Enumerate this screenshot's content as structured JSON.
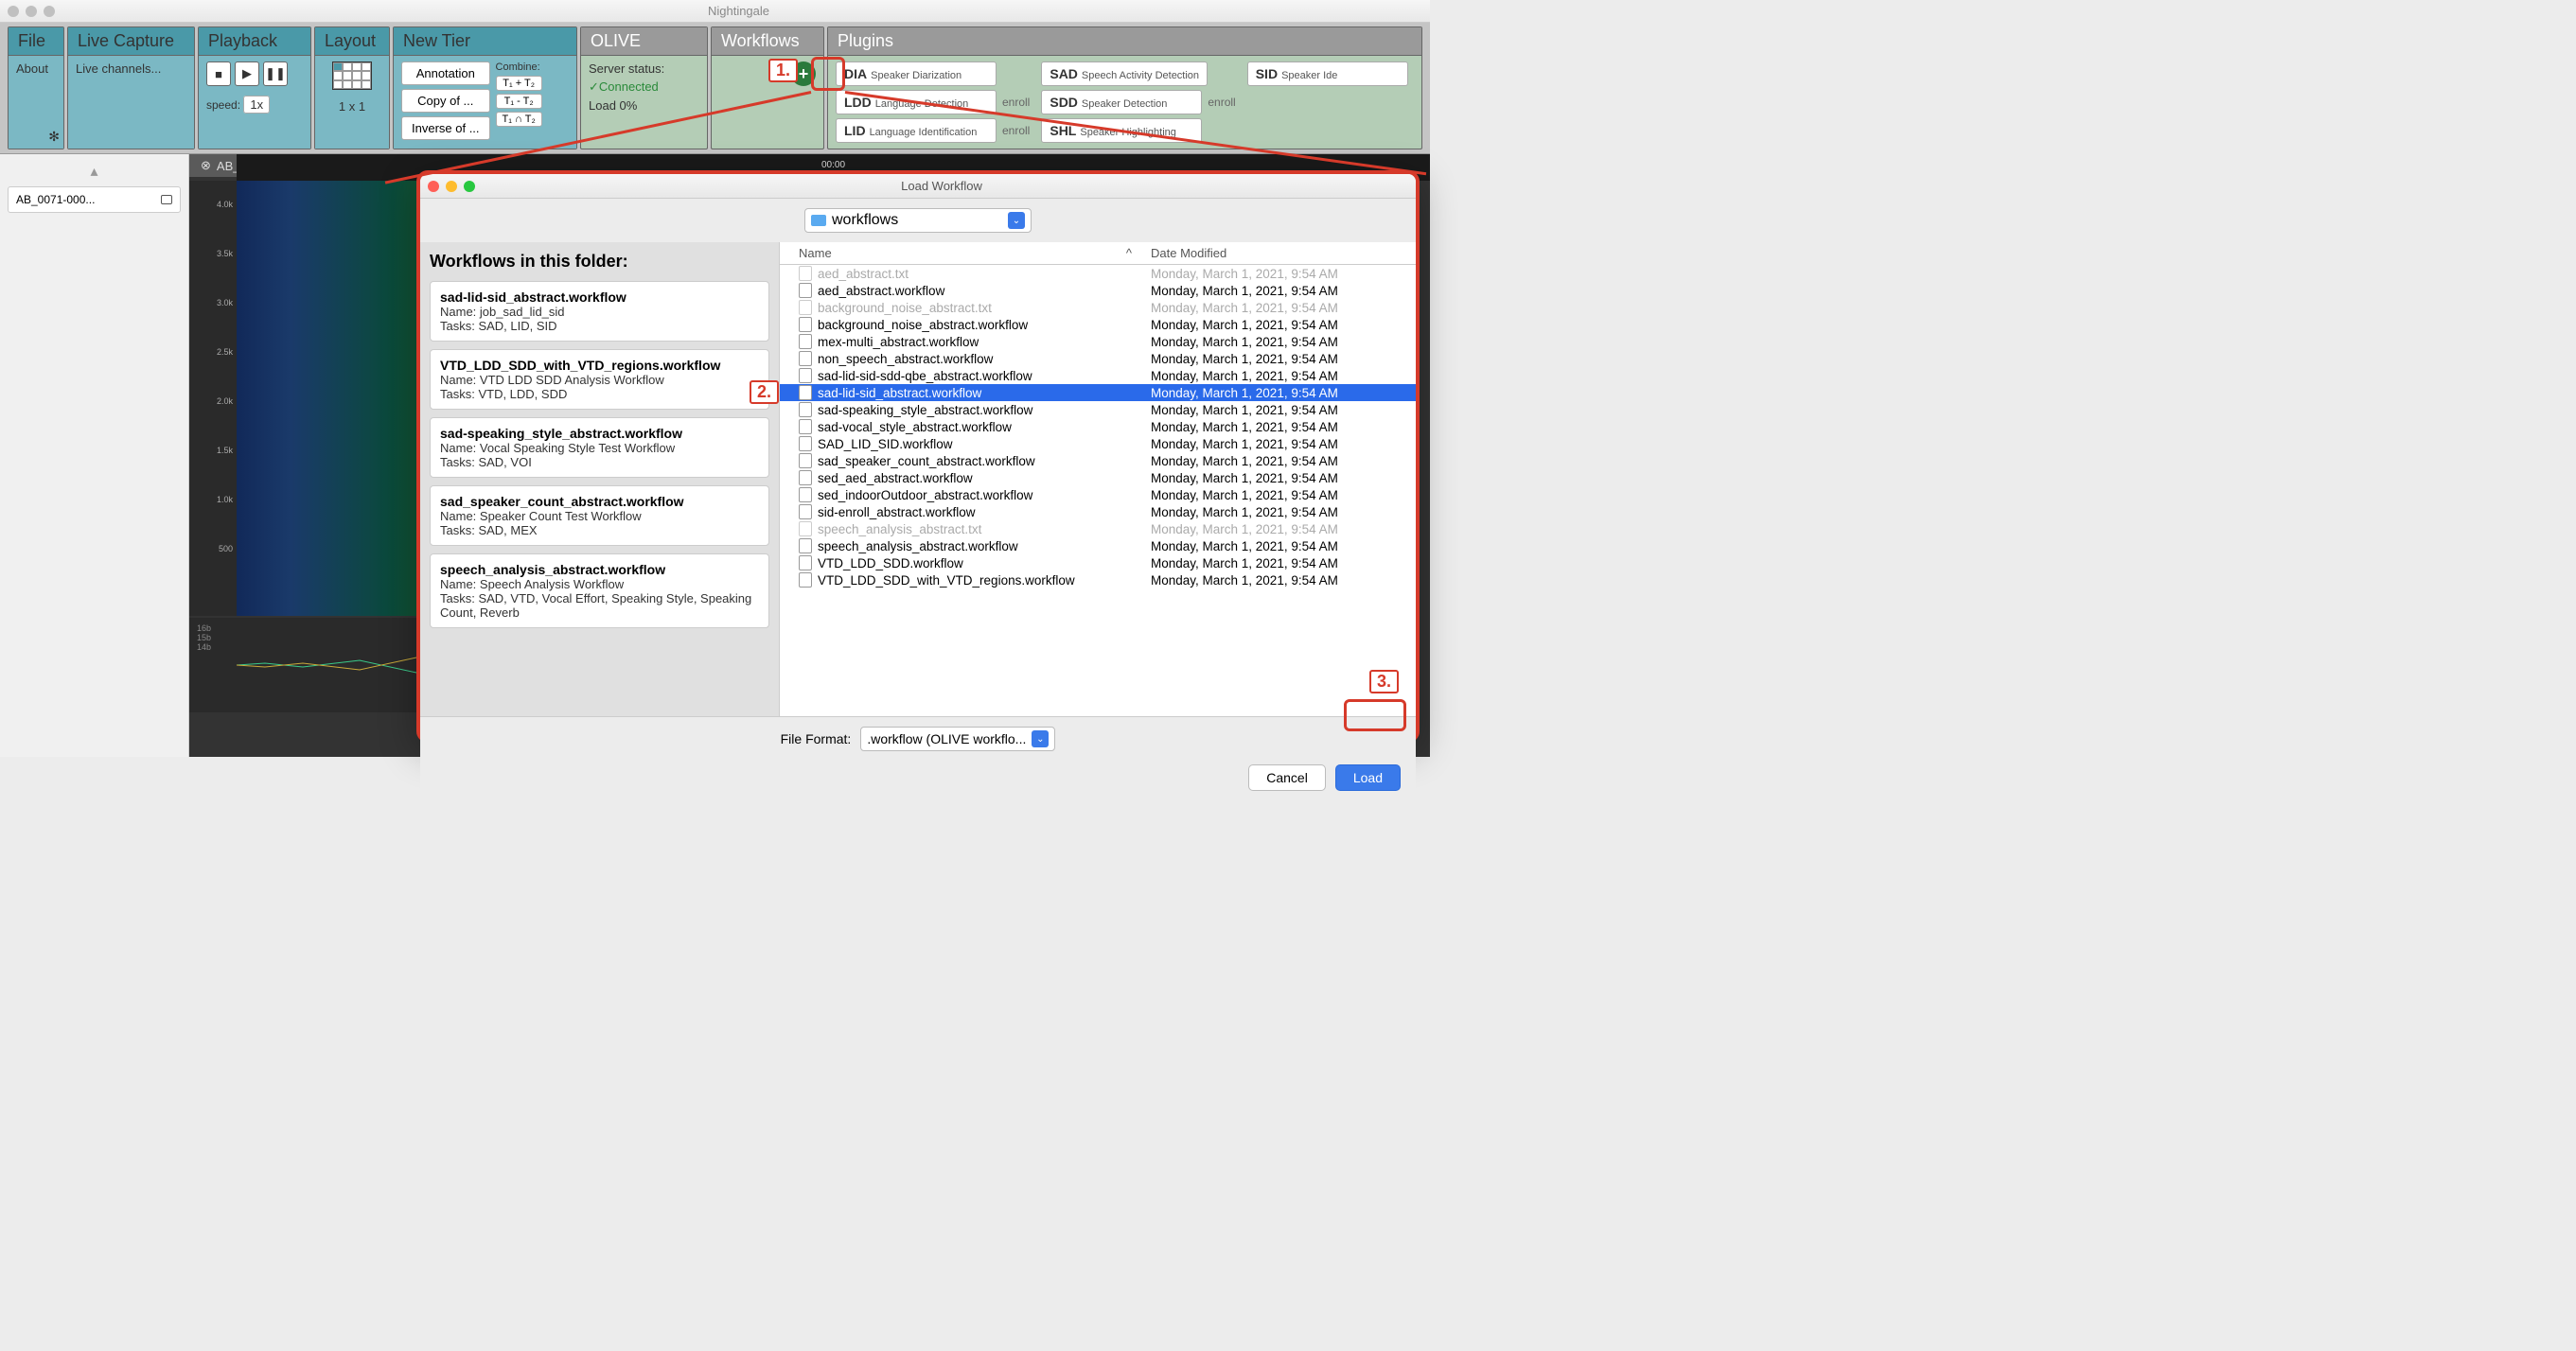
{
  "window": {
    "title": "Nightingale"
  },
  "traffic_colors": [
    "#c0c0c0",
    "#c0c0c0",
    "#c0c0c0"
  ],
  "dialog_traffic_colors": [
    "#ff5f57",
    "#febc2e",
    "#28c840"
  ],
  "toolbar": {
    "file": {
      "header": "File",
      "about": "About"
    },
    "live": {
      "header": "Live Capture",
      "channels": "Live channels..."
    },
    "playback": {
      "header": "Playback",
      "speed_label": "speed:",
      "speed_val": "1x"
    },
    "layout": {
      "header": "Layout",
      "dims": "1 x 1"
    },
    "newtier": {
      "header": "New Tier",
      "annotation": "Annotation",
      "copy": "Copy of ...",
      "inverse": "Inverse of ...",
      "combine": "Combine:",
      "c1": "T₁ + T₂",
      "c2": "T₁ - T₂",
      "c3": "T₁ ∩ T₂"
    },
    "olive": {
      "header": "OLIVE",
      "status_label": "Server status:",
      "connected": "✓Connected",
      "load": "Load 0%"
    },
    "workflows": {
      "header": "Workflows"
    },
    "plugins": {
      "header": "Plugins",
      "col1": [
        {
          "code": "DIA",
          "desc": "Speaker Diarization",
          "enroll": false
        },
        {
          "code": "LDD",
          "desc": "Language Detection",
          "enroll": true
        },
        {
          "code": "LID",
          "desc": "Language Identification",
          "enroll": true
        }
      ],
      "col2": [
        {
          "code": "SAD",
          "desc": "Speech Activity Detection",
          "enroll": false
        },
        {
          "code": "SDD",
          "desc": "Speaker Detection",
          "enroll": true
        },
        {
          "code": "SHL",
          "desc": "Speaker Highlighting",
          "enroll": false
        }
      ],
      "col3": [
        {
          "code": "SID",
          "desc": "Speaker Ide"
        }
      ],
      "enroll_label": "enroll"
    }
  },
  "sidebar": {
    "file": "AB_0071-000..."
  },
  "content": {
    "tab": "AB_0071-0000_M_Sm_F",
    "time": "00:00",
    "y_ticks": [
      "4.0k",
      "3.5k",
      "3.0k",
      "2.5k",
      "2.0k",
      "1.5k",
      "1.0k",
      "500"
    ],
    "wave_ticks": [
      "16b",
      "15b",
      "14b"
    ]
  },
  "dialog": {
    "title": "Load Workflow",
    "folder": "workflows",
    "panel_title": "Workflows in this folder:",
    "workflows": [
      {
        "t": "sad-lid-sid_abstract.workflow",
        "n": "Name: job_sad_lid_sid",
        "k": "Tasks: SAD, LID, SID"
      },
      {
        "t": "VTD_LDD_SDD_with_VTD_regions.workflow",
        "n": "Name: VTD LDD SDD Analysis Workflow",
        "k": "Tasks: VTD, LDD, SDD"
      },
      {
        "t": "sad-speaking_style_abstract.workflow",
        "n": "Name: Vocal Speaking Style Test Workflow",
        "k": "Tasks: SAD, VOI"
      },
      {
        "t": "sad_speaker_count_abstract.workflow",
        "n": "Name: Speaker Count Test Workflow",
        "k": "Tasks: SAD, MEX"
      },
      {
        "t": "speech_analysis_abstract.workflow",
        "n": "Name: Speech Analysis Workflow",
        "k": "Tasks: SAD, VTD, Vocal Effort, Speaking Style, Speaking Count, Reverb"
      }
    ],
    "columns": {
      "name": "Name",
      "date": "Date Modified"
    },
    "date_common": "Monday, March 1, 2021, 9:54 AM",
    "files": [
      {
        "n": "aed_abstract.txt",
        "dim": true
      },
      {
        "n": "aed_abstract.workflow"
      },
      {
        "n": "background_noise_abstract.txt",
        "dim": true
      },
      {
        "n": "background_noise_abstract.workflow"
      },
      {
        "n": "mex-multi_abstract.workflow"
      },
      {
        "n": "non_speech_abstract.workflow"
      },
      {
        "n": "sad-lid-sid-sdd-qbe_abstract.workflow"
      },
      {
        "n": "sad-lid-sid_abstract.workflow",
        "sel": true
      },
      {
        "n": "sad-speaking_style_abstract.workflow"
      },
      {
        "n": "sad-vocal_style_abstract.workflow"
      },
      {
        "n": "SAD_LID_SID.workflow"
      },
      {
        "n": "sad_speaker_count_abstract.workflow"
      },
      {
        "n": "sed_aed_abstract.workflow"
      },
      {
        "n": "sed_indoorOutdoor_abstract.workflow"
      },
      {
        "n": "sid-enroll_abstract.workflow"
      },
      {
        "n": "speech_analysis_abstract.txt",
        "dim": true
      },
      {
        "n": "speech_analysis_abstract.workflow"
      },
      {
        "n": "VTD_LDD_SDD.workflow"
      },
      {
        "n": "VTD_LDD_SDD_with_VTD_regions.workflow"
      }
    ],
    "format_label": "File Format:",
    "format_value": ".workflow (OLIVE workflo...",
    "cancel": "Cancel",
    "load": "Load"
  },
  "callouts": {
    "one": "1.",
    "two": "2.",
    "three": "3."
  }
}
